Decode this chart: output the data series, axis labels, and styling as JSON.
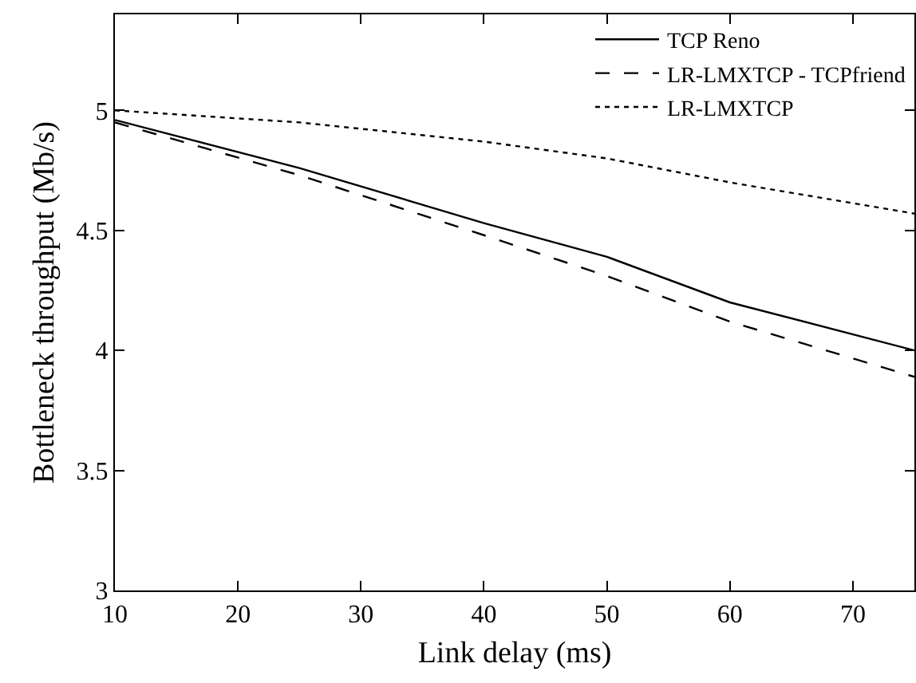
{
  "chart_data": {
    "type": "line",
    "xlabel": "Link delay (ms)",
    "ylabel": "Bottleneck throughput (Mb/s)",
    "x": [
      10,
      25,
      40,
      50,
      60,
      75
    ],
    "series": [
      {
        "name": "TCP Reno",
        "color": "#000000",
        "line_style": "solid",
        "values": [
          4.96,
          4.76,
          4.53,
          4.39,
          4.2,
          4.0
        ]
      },
      {
        "name": "LR-LMXTCP - TCPfriend",
        "color": "#000000",
        "line_style": "dashed",
        "values": [
          4.95,
          4.73,
          4.48,
          4.31,
          4.12,
          3.89
        ]
      },
      {
        "name": "LR-LMXTCP",
        "color": "#000000",
        "line_style": "dotted",
        "values": [
          5.0,
          4.95,
          4.87,
          4.8,
          4.7,
          4.57
        ]
      }
    ],
    "xlim": [
      10,
      75
    ],
    "xticks": [
      10,
      20,
      30,
      40,
      50,
      60,
      70
    ],
    "ylim": [
      3,
      5.4
    ],
    "yticks": [
      3,
      3.5,
      4,
      4.5,
      5
    ],
    "grid": false,
    "legend": "top right",
    "marker": "none"
  }
}
